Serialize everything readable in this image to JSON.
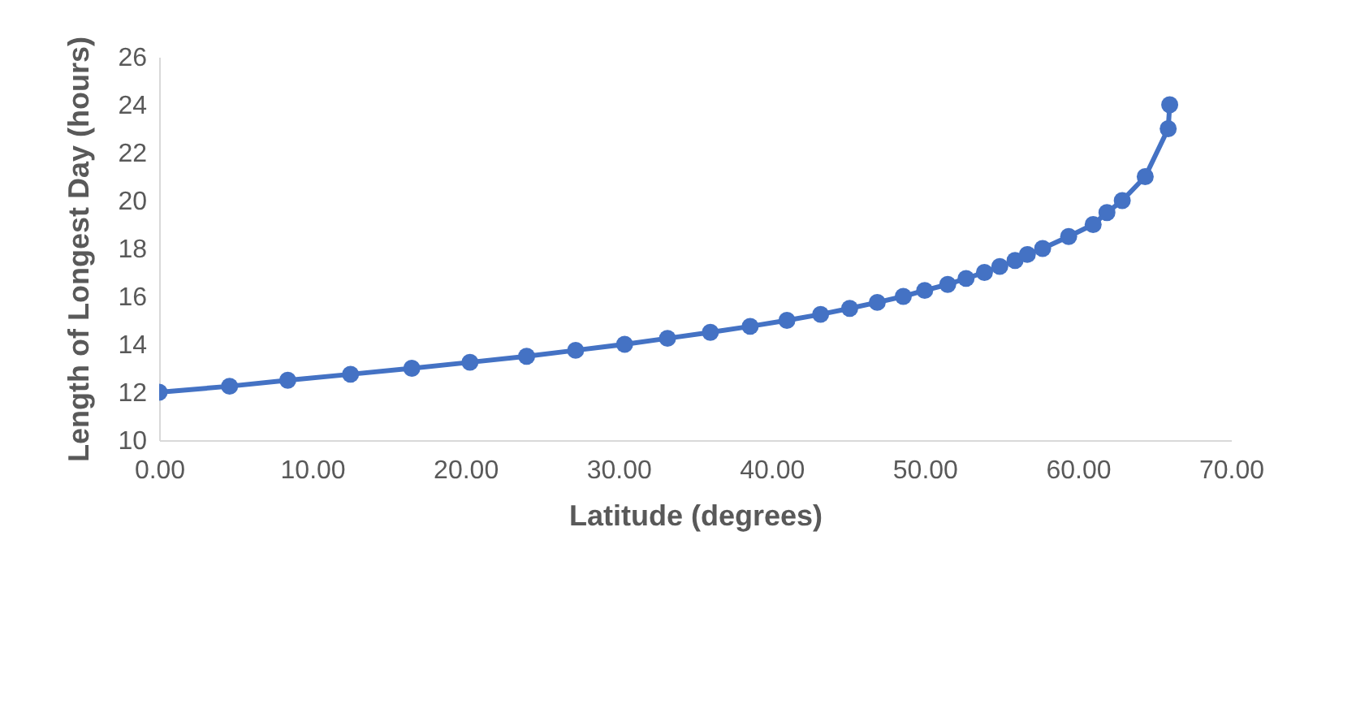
{
  "chart_data": {
    "type": "line",
    "xlabel": "Latitude (degrees)",
    "ylabel": "Length of Longest Day (hours)",
    "x": [
      0,
      4.6,
      8.4,
      12.5,
      16.5,
      20.3,
      24.0,
      27.2,
      30.4,
      33.2,
      36.0,
      38.6,
      41.0,
      43.2,
      45.1,
      46.9,
      48.6,
      50.0,
      51.5,
      52.7,
      53.9,
      54.9,
      55.9,
      56.7,
      57.7,
      59.4,
      61.0,
      61.9,
      62.9,
      64.4,
      65.9,
      66.0
    ],
    "series": [
      {
        "color": "#4472c4",
        "values": [
          12,
          12.25,
          12.5,
          12.75,
          13,
          13.25,
          13.5,
          13.75,
          14,
          14.25,
          14.5,
          14.75,
          15,
          15.25,
          15.5,
          15.75,
          16,
          16.25,
          16.5,
          16.75,
          17,
          17.25,
          17.5,
          17.75,
          18,
          18.5,
          19,
          19.5,
          20,
          21,
          23,
          24
        ]
      }
    ],
    "xlim": [
      0,
      70
    ],
    "xticks": [
      {
        "value": 0,
        "label": "0.00"
      },
      {
        "value": 10,
        "label": "10.00"
      },
      {
        "value": 20,
        "label": "20.00"
      },
      {
        "value": 30,
        "label": "30.00"
      },
      {
        "value": 40,
        "label": "40.00"
      },
      {
        "value": 50,
        "label": "50.00"
      },
      {
        "value": 60,
        "label": "60.00"
      },
      {
        "value": 70,
        "label": "70.00"
      }
    ],
    "ylim": [
      10,
      26
    ],
    "yticks": [
      10,
      12,
      14,
      16,
      18,
      20,
      22,
      24,
      26
    ],
    "grid": false,
    "marker": "circle",
    "line_style": "solid"
  }
}
